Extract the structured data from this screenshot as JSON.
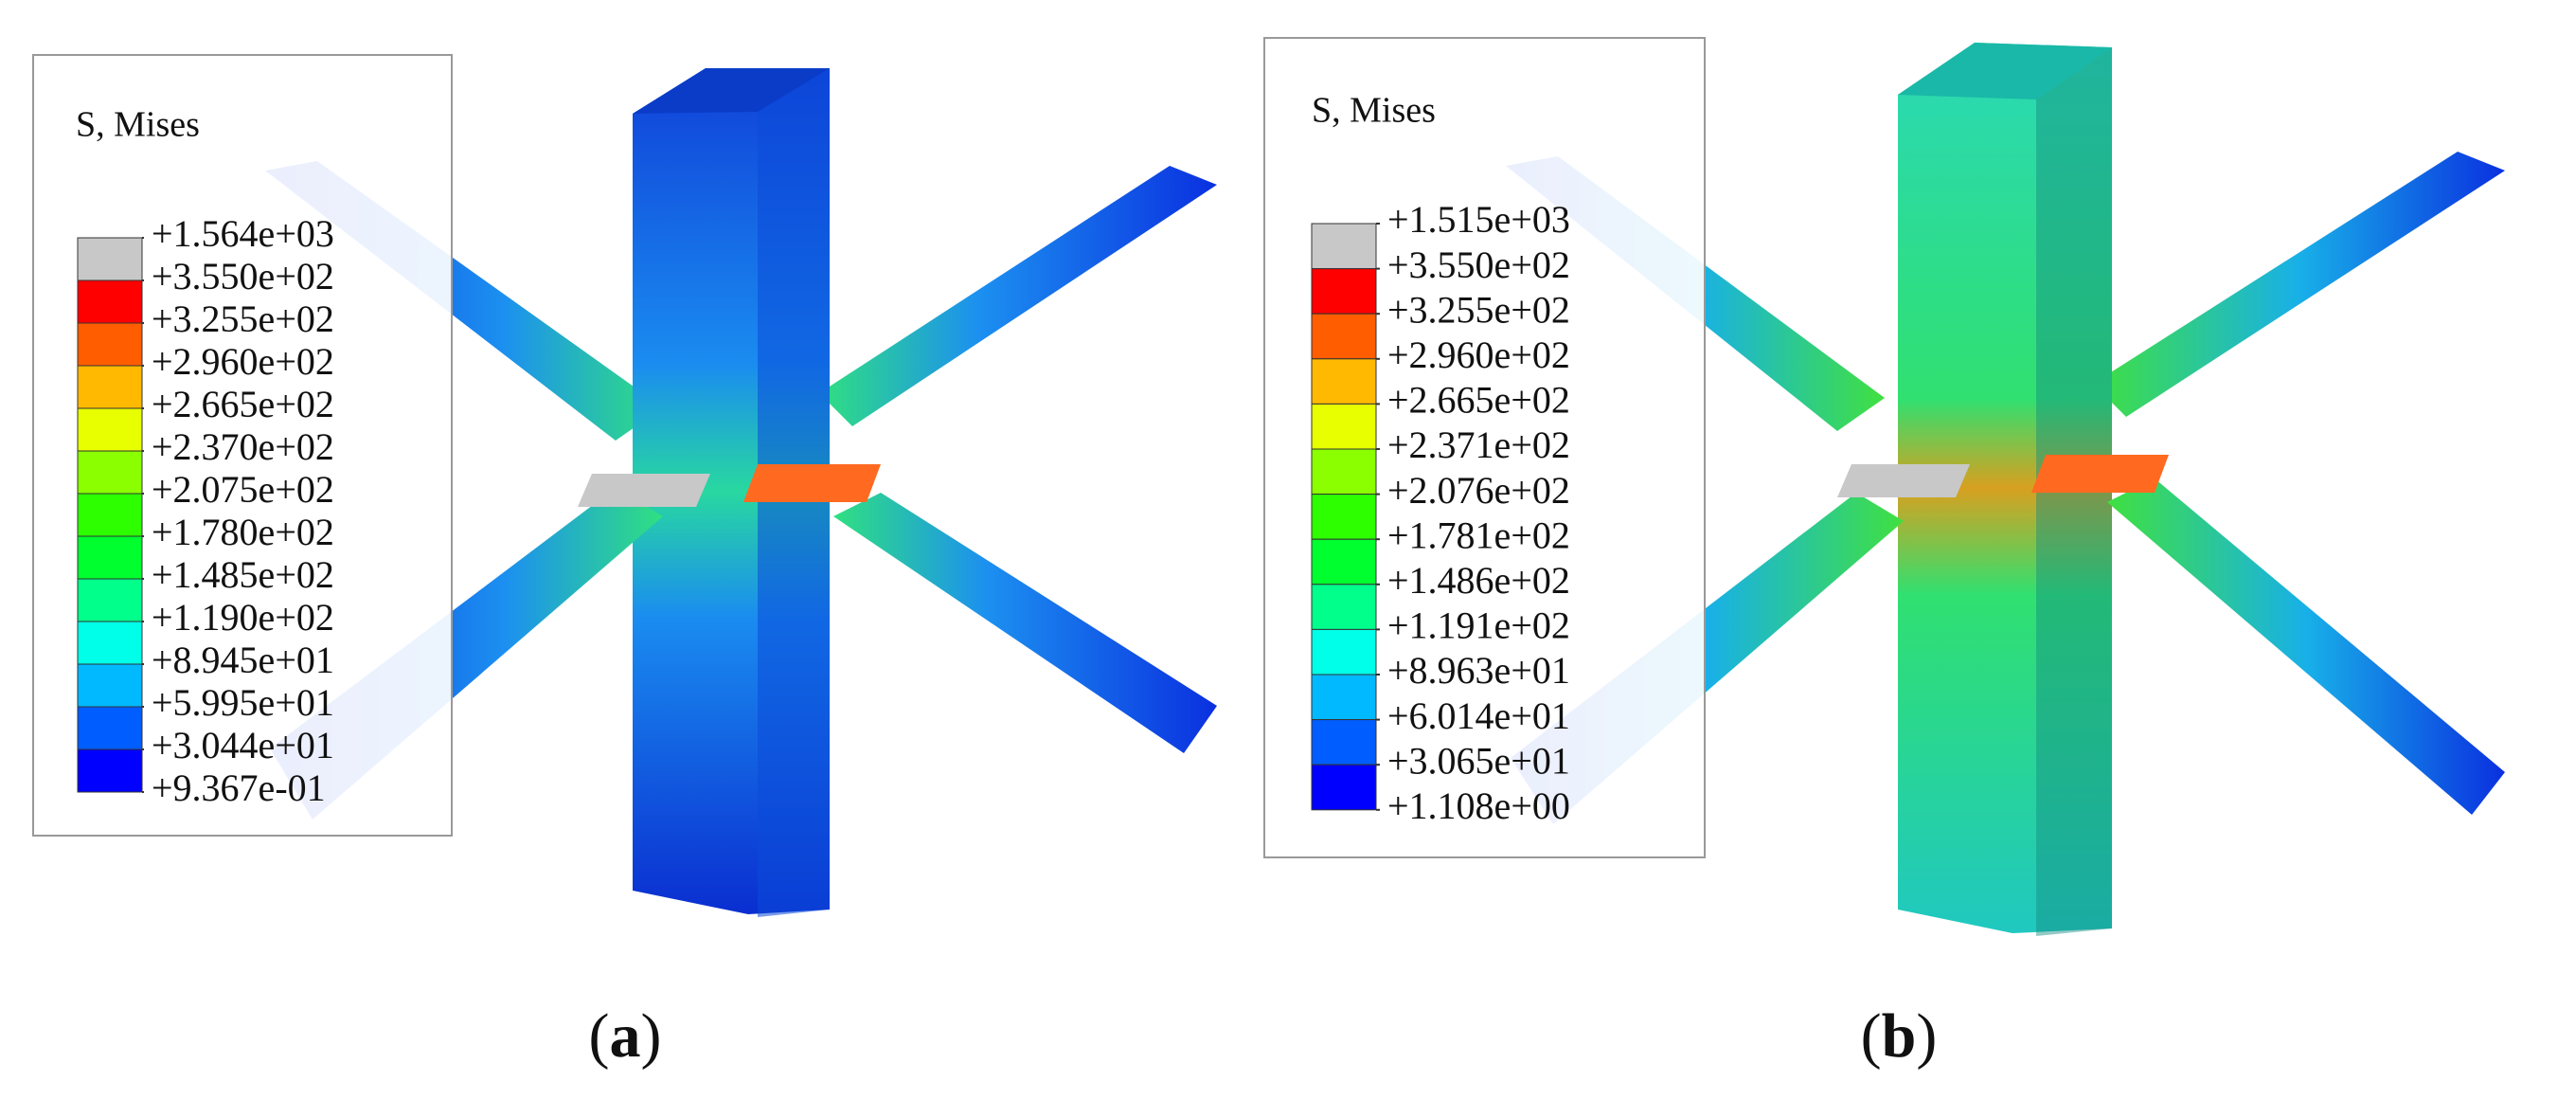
{
  "panels": [
    {
      "legend": {
        "title": "S, Mises",
        "labels": [
          "+1.564e+03",
          "+3.550e+02",
          "+3.255e+02",
          "+2.960e+02",
          "+2.665e+02",
          "+2.370e+02",
          "+2.075e+02",
          "+1.780e+02",
          "+1.485e+02",
          "+1.190e+02",
          "+8.945e+01",
          "+5.995e+01",
          "+3.044e+01",
          "+9.367e-01"
        ]
      },
      "label": {
        "open": "(",
        "letter": "a",
        "close": ")"
      }
    },
    {
      "legend": {
        "title": "S, Mises",
        "labels": [
          "+1.515e+03",
          "+3.550e+02",
          "+3.255e+02",
          "+2.960e+02",
          "+2.665e+02",
          "+2.371e+02",
          "+2.076e+02",
          "+1.781e+02",
          "+1.486e+02",
          "+1.191e+02",
          "+8.963e+01",
          "+6.014e+01",
          "+3.065e+01",
          "+1.108e+00"
        ]
      },
      "label": {
        "open": "(",
        "letter": "b",
        "close": ")"
      }
    }
  ]
}
